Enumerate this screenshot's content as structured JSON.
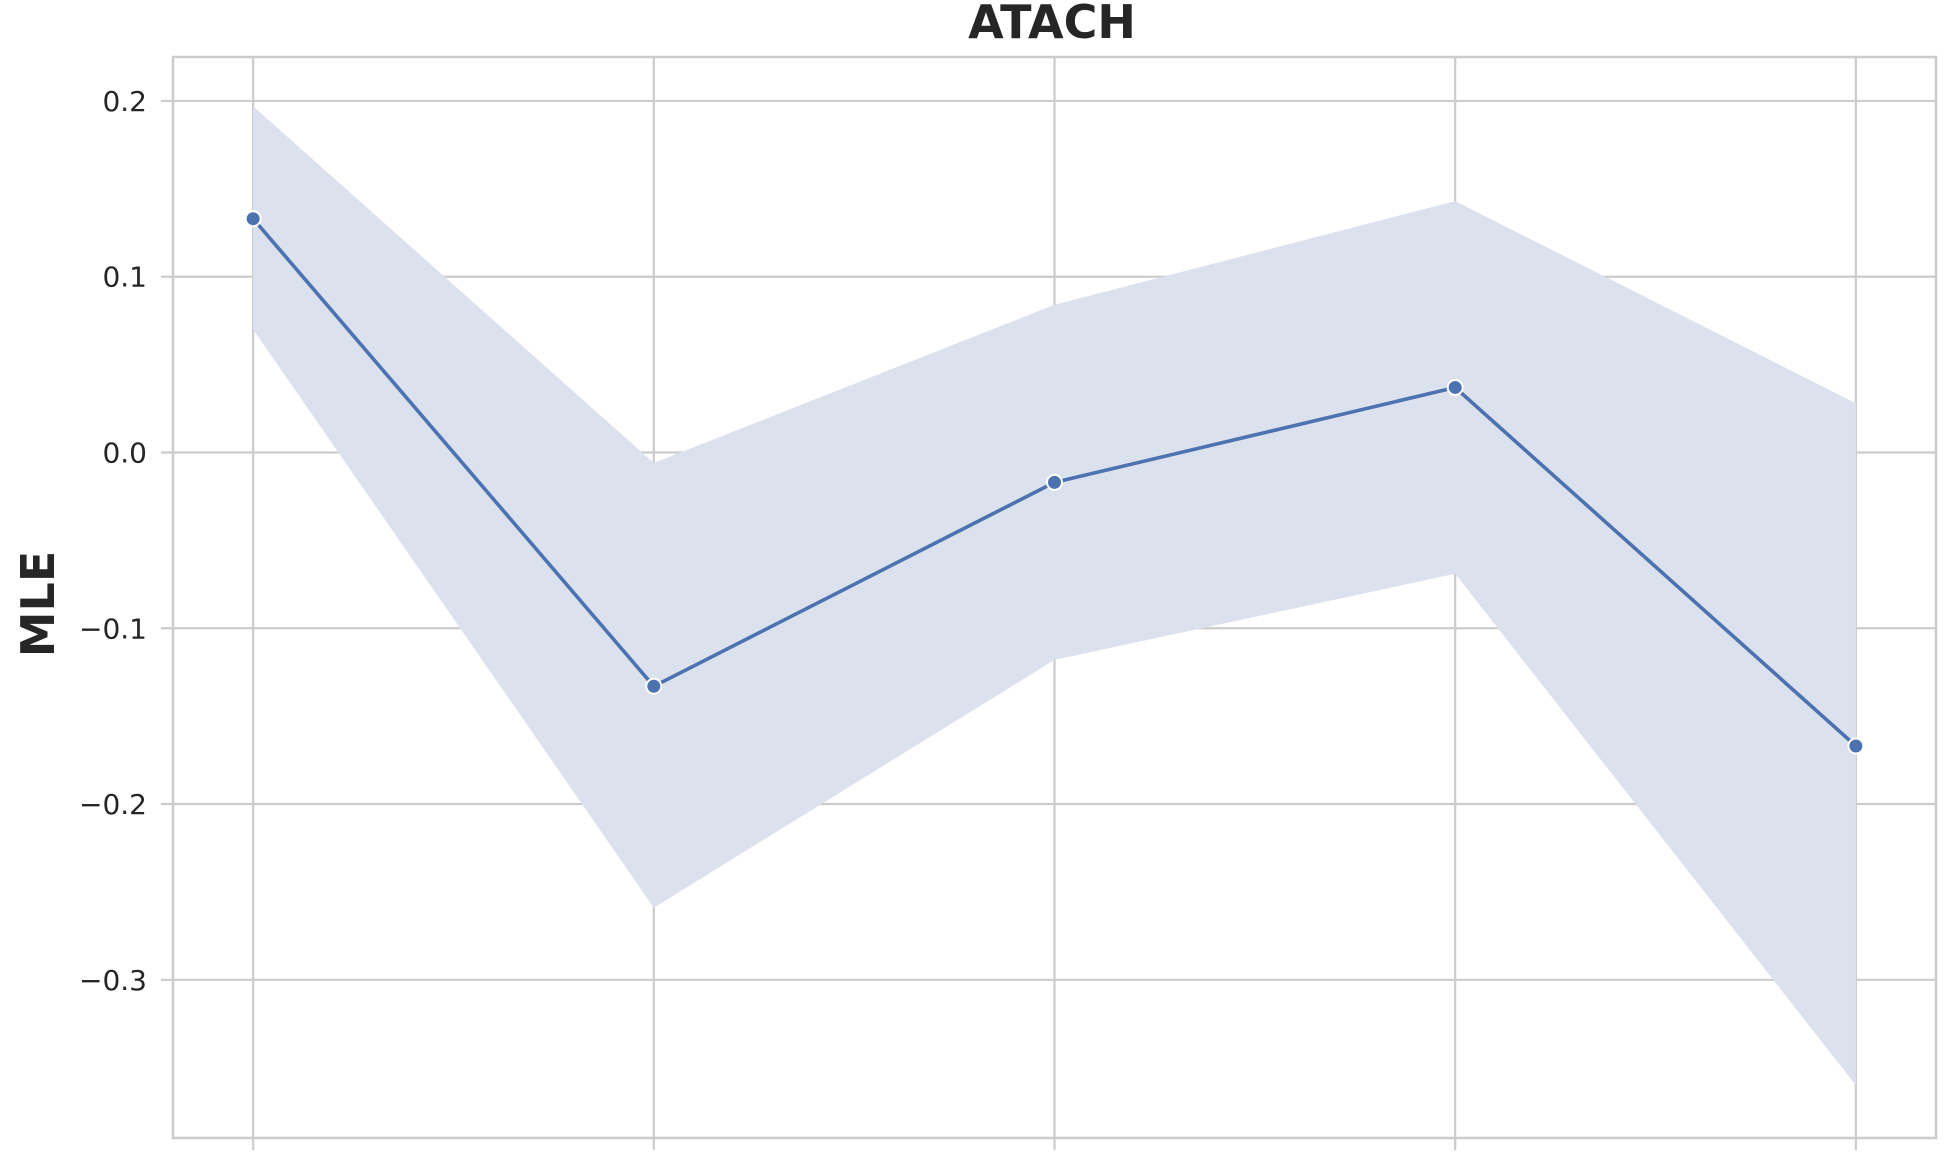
{
  "chart_data": {
    "type": "line",
    "title": "ATACH",
    "xlabel": "",
    "ylabel": "MLE",
    "x": [
      0,
      1,
      2,
      3,
      4
    ],
    "xlim": [
      -0.2,
      4.2
    ],
    "ylim": [
      -0.39,
      0.225
    ],
    "yticks": [
      -0.3,
      -0.2,
      -0.1,
      0.0,
      0.1,
      0.2
    ],
    "ytick_labels": [
      "−0.3",
      "−0.2",
      "−0.1",
      "0.0",
      "0.1",
      "0.2"
    ],
    "grid": true,
    "series": [
      {
        "values": [
          0.133,
          -0.133,
          -0.017,
          0.037,
          -0.167
        ],
        "ci_upper": [
          0.197,
          -0.006,
          0.084,
          0.143,
          0.028
        ],
        "ci_lower": [
          0.07,
          -0.259,
          -0.118,
          -0.069,
          -0.36
        ],
        "color": "#4c72b0",
        "band_color": "#dce1ee",
        "marker": "circle"
      }
    ],
    "colors": {
      "background": "#ffffff",
      "grid": "#cccccc",
      "spine": "#cccccc",
      "text": "#262626"
    }
  }
}
